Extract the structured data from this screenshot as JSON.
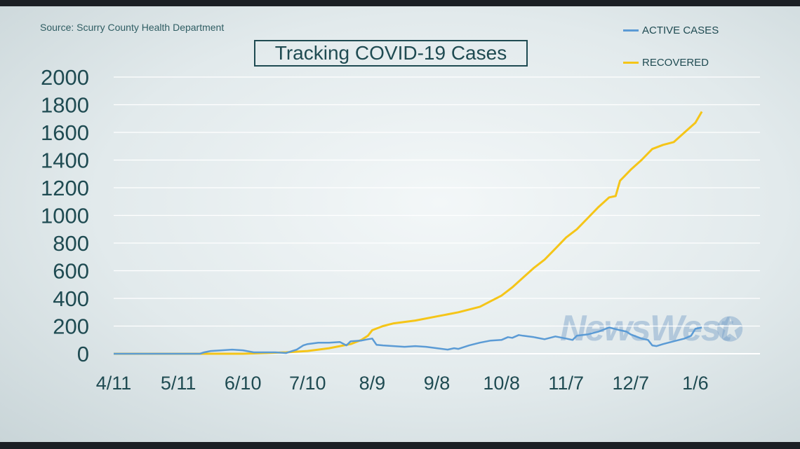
{
  "source": "Source: Scurry County Health Department",
  "title": "Tracking COVID-19 Cases",
  "watermark": "NewsWest",
  "watermark_icon": "star-9-icon",
  "colors": {
    "active": "#5b9bd5",
    "recovered": "#f5c518",
    "text": "#1f4b52",
    "grid": "#ffffff"
  },
  "chart_data": {
    "type": "line",
    "title": "Tracking COVID-19 Cases",
    "xlabel": "",
    "ylabel": "",
    "ylim": [
      0,
      2000
    ],
    "yticks": [
      "2000",
      "1800",
      "1600",
      "1400",
      "1200",
      "1000",
      "800",
      "600",
      "400",
      "200",
      "0"
    ],
    "xticks": [
      "4/11",
      "5/11",
      "6/10",
      "7/10",
      "8/9",
      "9/8",
      "10/8",
      "11/7",
      "12/7",
      "1/6"
    ],
    "xtick_days": [
      0,
      30,
      60,
      90,
      120,
      150,
      180,
      210,
      240,
      270
    ],
    "xlim_days": [
      0,
      300
    ],
    "grid": true,
    "legend": "top-right",
    "series": [
      {
        "name": "ACTIVE CASES",
        "color": "#5b9bd5",
        "points": [
          [
            0,
            0
          ],
          [
            40,
            0
          ],
          [
            42,
            10
          ],
          [
            45,
            20
          ],
          [
            50,
            25
          ],
          [
            55,
            30
          ],
          [
            60,
            25
          ],
          [
            65,
            10
          ],
          [
            70,
            10
          ],
          [
            75,
            10
          ],
          [
            80,
            5
          ],
          [
            85,
            30
          ],
          [
            88,
            60
          ],
          [
            90,
            70
          ],
          [
            95,
            80
          ],
          [
            100,
            80
          ],
          [
            105,
            85
          ],
          [
            108,
            60
          ],
          [
            110,
            90
          ],
          [
            115,
            95
          ],
          [
            118,
            105
          ],
          [
            120,
            110
          ],
          [
            122,
            65
          ],
          [
            125,
            60
          ],
          [
            130,
            55
          ],
          [
            135,
            50
          ],
          [
            140,
            55
          ],
          [
            145,
            50
          ],
          [
            150,
            40
          ],
          [
            155,
            30
          ],
          [
            158,
            40
          ],
          [
            160,
            35
          ],
          [
            165,
            60
          ],
          [
            170,
            80
          ],
          [
            175,
            95
          ],
          [
            180,
            100
          ],
          [
            183,
            120
          ],
          [
            185,
            115
          ],
          [
            188,
            135
          ],
          [
            190,
            130
          ],
          [
            195,
            120
          ],
          [
            200,
            105
          ],
          [
            205,
            125
          ],
          [
            210,
            110
          ],
          [
            213,
            100
          ],
          [
            215,
            130
          ],
          [
            220,
            140
          ],
          [
            225,
            160
          ],
          [
            230,
            190
          ],
          [
            235,
            170
          ],
          [
            238,
            160
          ],
          [
            240,
            140
          ],
          [
            245,
            110
          ],
          [
            248,
            100
          ],
          [
            250,
            60
          ],
          [
            252,
            55
          ],
          [
            255,
            70
          ],
          [
            260,
            90
          ],
          [
            265,
            110
          ],
          [
            268,
            130
          ],
          [
            270,
            180
          ],
          [
            273,
            190
          ]
        ]
      },
      {
        "name": "RECOVERED",
        "color": "#f5c518",
        "points": [
          [
            0,
            0
          ],
          [
            60,
            0
          ],
          [
            70,
            5
          ],
          [
            80,
            10
          ],
          [
            90,
            20
          ],
          [
            100,
            40
          ],
          [
            110,
            70
          ],
          [
            115,
            100
          ],
          [
            118,
            130
          ],
          [
            120,
            170
          ],
          [
            125,
            200
          ],
          [
            130,
            220
          ],
          [
            140,
            240
          ],
          [
            150,
            270
          ],
          [
            160,
            300
          ],
          [
            170,
            340
          ],
          [
            175,
            380
          ],
          [
            180,
            420
          ],
          [
            185,
            480
          ],
          [
            190,
            550
          ],
          [
            195,
            620
          ],
          [
            200,
            680
          ],
          [
            205,
            760
          ],
          [
            210,
            840
          ],
          [
            215,
            900
          ],
          [
            220,
            980
          ],
          [
            225,
            1060
          ],
          [
            230,
            1130
          ],
          [
            233,
            1140
          ],
          [
            235,
            1250
          ],
          [
            240,
            1330
          ],
          [
            245,
            1400
          ],
          [
            250,
            1480
          ],
          [
            255,
            1510
          ],
          [
            260,
            1530
          ],
          [
            265,
            1600
          ],
          [
            270,
            1670
          ],
          [
            273,
            1750
          ]
        ]
      }
    ]
  }
}
